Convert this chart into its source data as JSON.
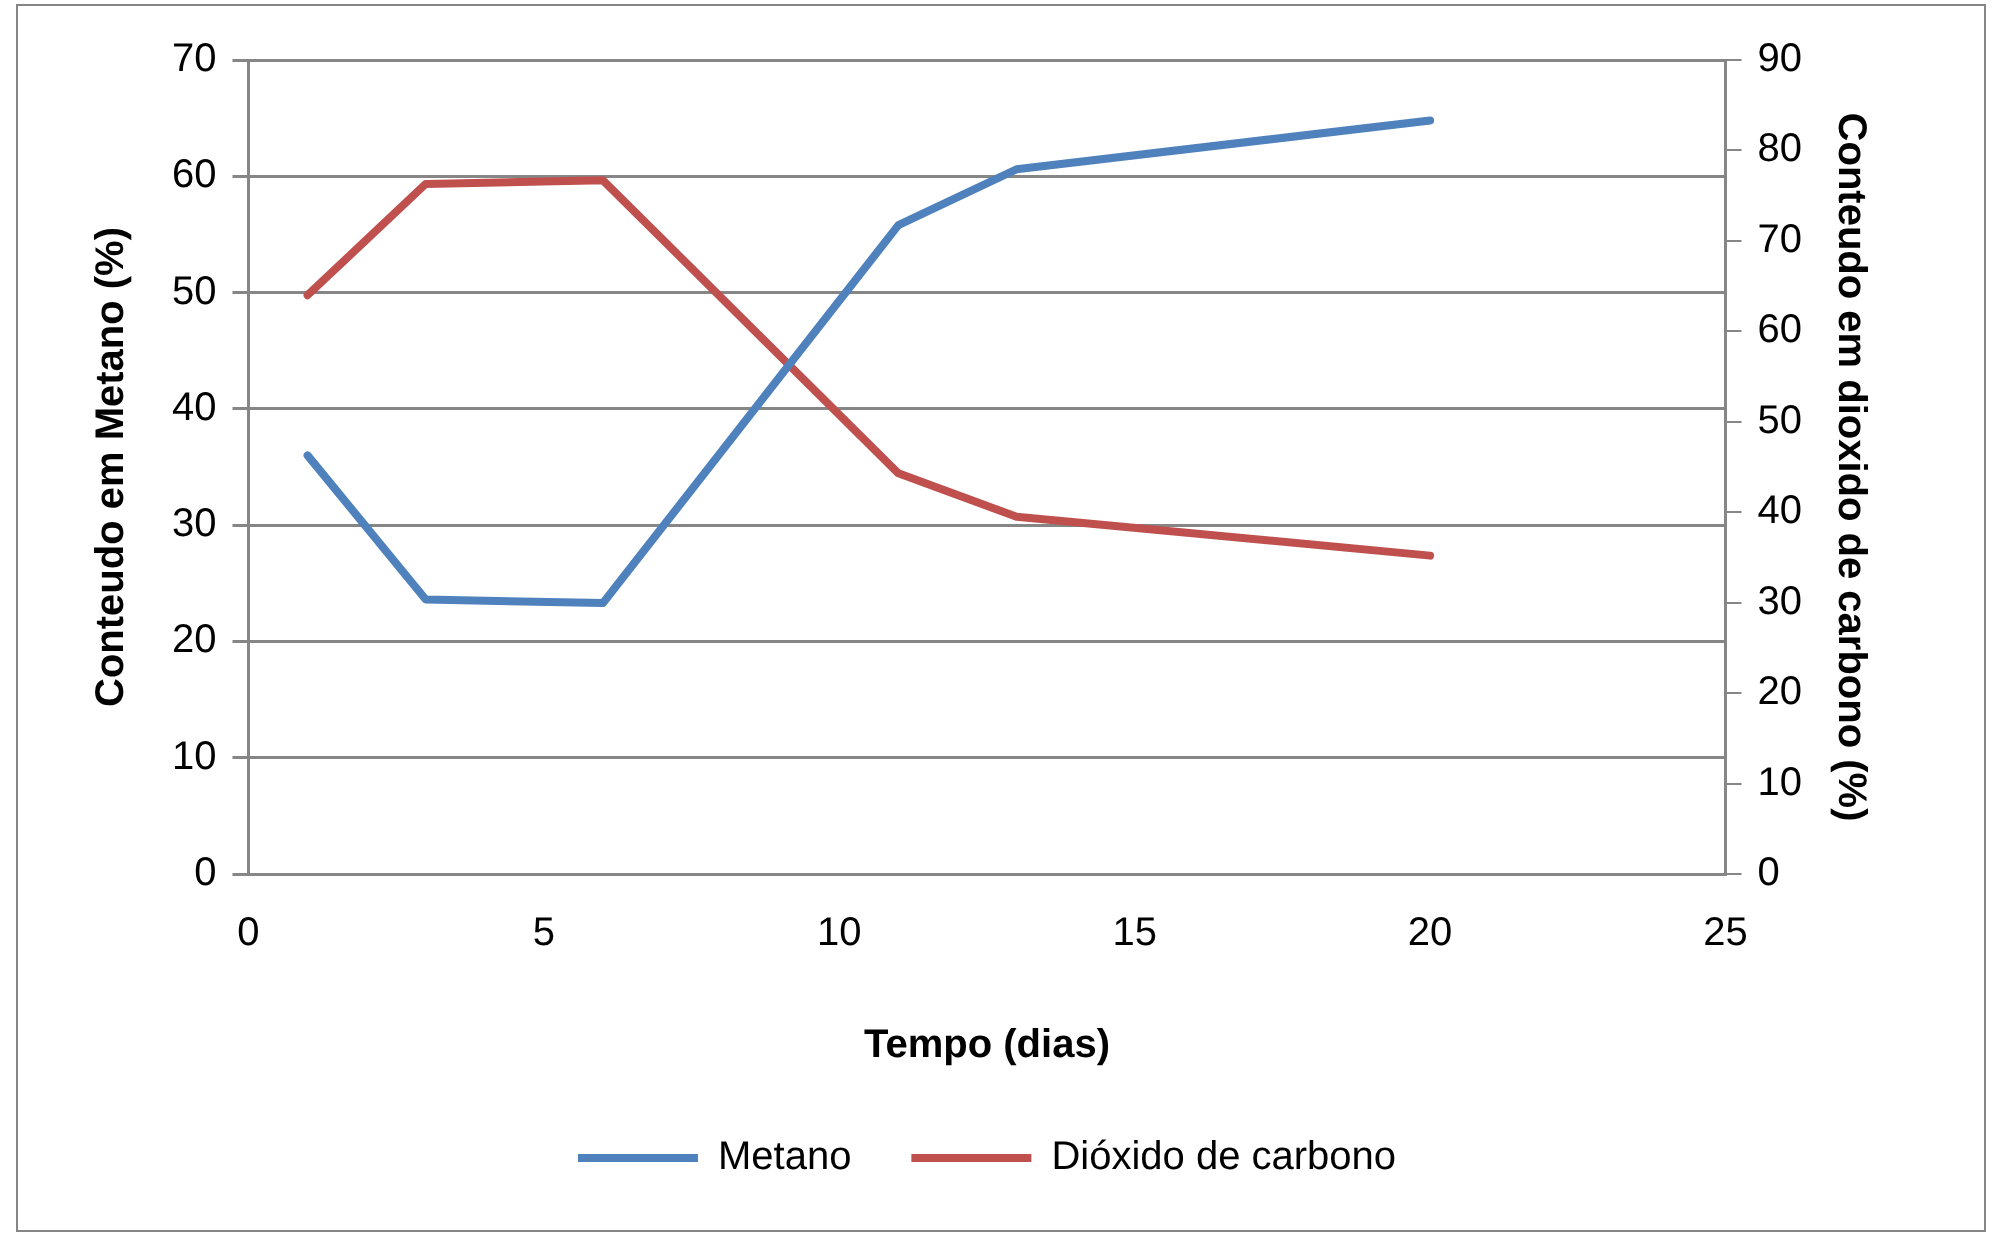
{
  "chart_data": {
    "type": "line",
    "xlabel": "Tempo (dias)",
    "ylabel": "Conteudo em Metano (%)",
    "y2label": "Conteudo em dioxido de carbono (%)",
    "x": [
      1,
      3,
      6,
      11,
      13,
      20
    ],
    "series": [
      {
        "name": "Metano",
        "color": "#4f81bd",
        "values": [
          36,
          23.6,
          23.3,
          55.8,
          60.6,
          64.8
        ]
      },
      {
        "name": "Dióxido de carbono",
        "color": "#c0504d",
        "axis": "y2",
        "values": [
          64,
          76.3,
          76.7,
          44.3,
          39.5,
          35.2
        ]
      }
    ],
    "xlim": [
      0,
      25
    ],
    "xticks": [
      0,
      5,
      10,
      15,
      20,
      25
    ],
    "ylim": [
      0,
      70
    ],
    "yticks": [
      0,
      10,
      20,
      30,
      40,
      50,
      60,
      70
    ],
    "y2lim": [
      0,
      90
    ],
    "y2ticks": [
      0,
      10,
      20,
      30,
      40,
      50,
      60,
      70,
      80,
      90
    ],
    "grid": "y",
    "legend": "bottom",
    "marker": "none",
    "line_style": "solid"
  }
}
